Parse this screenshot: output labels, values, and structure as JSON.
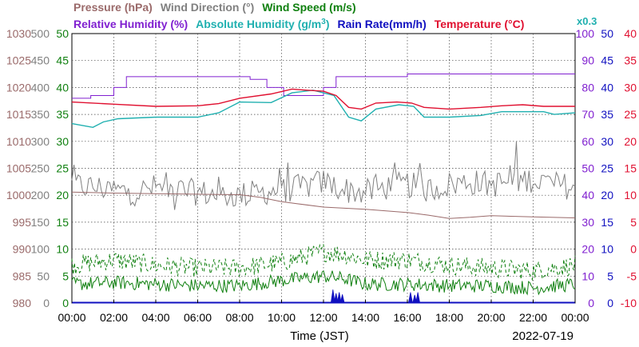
{
  "chart_data": {
    "type": "line",
    "date": "2022-07-19",
    "xlabel": "Time (JST)",
    "x_ticks": [
      "00:00",
      "02:00",
      "04:00",
      "06:00",
      "08:00",
      "10:00",
      "12:00",
      "14:00",
      "16:00",
      "18:00",
      "20:00",
      "22:00",
      "00:00"
    ],
    "x_range_hours": [
      0,
      24
    ],
    "grid": true,
    "legend": {
      "row1": [
        {
          "text": "Pressure (hPa)",
          "color": "#9a6a6a"
        },
        {
          "text": "Wind Direction (°)",
          "color": "#808080"
        },
        {
          "text": "Wind Speed (m/s)",
          "color": "#108010"
        }
      ],
      "row2": [
        {
          "text": "Relative Humidity (%)",
          "color": "#8020d0"
        },
        {
          "text": "Absolute Humidity (g/m",
          "sup": "3",
          "close": ")",
          "color": "#20b0b0"
        },
        {
          "text": "Rain Rate(mm/h)",
          "color": "#1010c0"
        },
        {
          "text": "Temperature (°C)",
          "color": "#e01030"
        }
      ],
      "scale_note": {
        "text": "x0.3",
        "color": "#20b0b0"
      }
    },
    "axes": {
      "pressure": {
        "color": "#9a6a6a",
        "ticks": [
          "1030",
          "1025",
          "1020",
          "1015",
          "1010",
          "1005",
          "1000",
          "995",
          "990",
          "985",
          "980"
        ],
        "range": [
          980,
          1030
        ]
      },
      "wind_direction": {
        "color": "#808080",
        "ticks": [
          "500",
          "450",
          "400",
          "350",
          "300",
          "250",
          "200",
          "150",
          "100",
          "50",
          "0"
        ],
        "range": [
          0,
          500
        ]
      },
      "wind_speed": {
        "color": "#108010",
        "ticks": [
          "50",
          "45",
          "40",
          "35",
          "30",
          "25",
          "20",
          "15",
          "10",
          "5",
          "0"
        ],
        "range": [
          0,
          50
        ]
      },
      "relative_humidity": {
        "color": "#8020d0",
        "ticks": [
          "100",
          "90",
          "80",
          "70",
          "60",
          "50",
          "40",
          "30",
          "20",
          "10",
          "0"
        ],
        "range": [
          0,
          100
        ]
      },
      "rain_rate": {
        "color": "#1010c0",
        "ticks": [
          "50",
          "45",
          "40",
          "35",
          "30",
          "25",
          "20",
          "15",
          "10",
          "5",
          "0"
        ],
        "range": [
          0,
          50
        ]
      },
      "temperature": {
        "color": "#e01030",
        "ticks": [
          "40",
          "35",
          "30",
          "25",
          "20",
          "15",
          "10",
          "5",
          "0",
          "-5",
          "-10"
        ],
        "range": [
          -10,
          40
        ]
      }
    },
    "series": [
      {
        "name": "Pressure (hPa)",
        "axis": "pressure",
        "color": "#9a6a6a",
        "points": [
          [
            0,
            1000.6
          ],
          [
            2,
            1000.4
          ],
          [
            4,
            1000.3
          ],
          [
            6,
            1000.2
          ],
          [
            8,
            1000.1
          ],
          [
            9,
            999.6
          ],
          [
            10,
            998.8
          ],
          [
            12,
            997.8
          ],
          [
            14,
            997.4
          ],
          [
            16,
            996.8
          ],
          [
            17,
            996.3
          ],
          [
            18,
            995.7
          ],
          [
            19,
            995.9
          ],
          [
            20,
            996.2
          ],
          [
            22,
            996.0
          ],
          [
            24,
            995.8
          ]
        ]
      },
      {
        "name": "Wind Direction (°)",
        "axis": "wind_direction",
        "color": "#808080",
        "points": [
          [
            0,
            220
          ],
          [
            1,
            215
          ],
          [
            2,
            210
          ],
          [
            3,
            205
          ],
          [
            4,
            215
          ],
          [
            5,
            210
          ],
          [
            6,
            205
          ],
          [
            7,
            200
          ],
          [
            8,
            200
          ],
          [
            9,
            205
          ],
          [
            10,
            210
          ],
          [
            11,
            215
          ],
          [
            12,
            225
          ],
          [
            13,
            210
          ],
          [
            14,
            205
          ],
          [
            15,
            215
          ],
          [
            16,
            220
          ],
          [
            17,
            210
          ],
          [
            18,
            220
          ],
          [
            19,
            225
          ],
          [
            20,
            220
          ],
          [
            21,
            225
          ],
          [
            22,
            230
          ],
          [
            23,
            220
          ],
          [
            24,
            215
          ]
        ],
        "noise": 25
      },
      {
        "name": "Wind Speed (m/s) mean",
        "axis": "wind_speed",
        "color": "#108010",
        "style": "solid",
        "points": [
          [
            0,
            3.5
          ],
          [
            2,
            3.8
          ],
          [
            4,
            3.5
          ],
          [
            6,
            3.2
          ],
          [
            8,
            3.2
          ],
          [
            10,
            4.2
          ],
          [
            12,
            5.0
          ],
          [
            13,
            4.5
          ],
          [
            14,
            3.5
          ],
          [
            16,
            3.5
          ],
          [
            18,
            3.2
          ],
          [
            20,
            3.2
          ],
          [
            22,
            2.8
          ],
          [
            24,
            3.5
          ]
        ],
        "noise": 1.3
      },
      {
        "name": "Wind Speed (m/s) gust",
        "axis": "wind_speed",
        "color": "#108010",
        "style": "dashed",
        "points": [
          [
            0,
            7.0
          ],
          [
            2,
            8.0
          ],
          [
            4,
            7.0
          ],
          [
            6,
            6.5
          ],
          [
            8,
            6.5
          ],
          [
            10,
            7.5
          ],
          [
            12,
            9.5
          ],
          [
            13,
            9.0
          ],
          [
            14,
            8.0
          ],
          [
            16,
            8.0
          ],
          [
            18,
            7.0
          ],
          [
            20,
            6.5
          ],
          [
            22,
            6.0
          ],
          [
            24,
            7.0
          ]
        ],
        "noise": 1.8
      },
      {
        "name": "Relative Humidity (%)",
        "axis": "relative_humidity",
        "color": "#8020d0",
        "points": [
          [
            0,
            76
          ],
          [
            0.9,
            77
          ],
          [
            2.0,
            80
          ],
          [
            2.6,
            84
          ],
          [
            8.0,
            84
          ],
          [
            8.5,
            83
          ],
          [
            9.3,
            80
          ],
          [
            10.1,
            77
          ],
          [
            11.5,
            77
          ],
          [
            12.0,
            80
          ],
          [
            12.6,
            84
          ],
          [
            14.0,
            84
          ],
          [
            16.0,
            85
          ],
          [
            24,
            85
          ]
        ]
      },
      {
        "name": "Absolute Humidity (x0.3)",
        "axis": "temperature",
        "color": "#20b0b0",
        "points": [
          [
            0,
            23.3
          ],
          [
            1.0,
            22.6
          ],
          [
            1.5,
            23.6
          ],
          [
            2.2,
            24.2
          ],
          [
            4.0,
            24.5
          ],
          [
            6.0,
            24.5
          ],
          [
            7.0,
            25.3
          ],
          [
            8.0,
            27.3
          ],
          [
            9.5,
            27.2
          ],
          [
            10.5,
            29.0
          ],
          [
            11.5,
            29.5
          ],
          [
            12.5,
            28.5
          ],
          [
            13.2,
            24.5
          ],
          [
            13.8,
            23.8
          ],
          [
            14.5,
            26.0
          ],
          [
            15.6,
            26.8
          ],
          [
            16.3,
            26.5
          ],
          [
            16.8,
            24.5
          ],
          [
            18.0,
            24.5
          ],
          [
            19.5,
            24.8
          ],
          [
            20.5,
            25.5
          ],
          [
            22.5,
            25.5
          ],
          [
            23.0,
            25.0
          ],
          [
            24,
            25.3
          ]
        ]
      },
      {
        "name": "Temperature (°C)",
        "axis": "temperature",
        "color": "#e01030",
        "points": [
          [
            0,
            27.3
          ],
          [
            2.0,
            26.9
          ],
          [
            4.0,
            26.5
          ],
          [
            6.0,
            26.6
          ],
          [
            7.0,
            27.0
          ],
          [
            8.0,
            28.0
          ],
          [
            9.5,
            28.8
          ],
          [
            10.5,
            29.7
          ],
          [
            11.2,
            29.5
          ],
          [
            12.0,
            29.3
          ],
          [
            12.6,
            28.5
          ],
          [
            13.2,
            26.3
          ],
          [
            13.8,
            26.0
          ],
          [
            14.5,
            27.1
          ],
          [
            15.5,
            27.3
          ],
          [
            16.2,
            27.1
          ],
          [
            16.8,
            26.3
          ],
          [
            18.0,
            26.0
          ],
          [
            19.5,
            26.3
          ],
          [
            20.5,
            26.6
          ],
          [
            21.5,
            26.8
          ],
          [
            22.5,
            26.5
          ],
          [
            24,
            26.5
          ]
        ]
      },
      {
        "name": "Rain Rate (mm/h)",
        "axis": "rain_rate",
        "color": "#1010c0",
        "style": "spikes",
        "spikes": [
          [
            12.45,
            2.5
          ],
          [
            12.6,
            1.8
          ],
          [
            12.75,
            2.0
          ],
          [
            12.9,
            1.6
          ],
          [
            16.15,
            2.0
          ],
          [
            16.35,
            1.5
          ],
          [
            16.5,
            2.0
          ]
        ]
      }
    ]
  }
}
